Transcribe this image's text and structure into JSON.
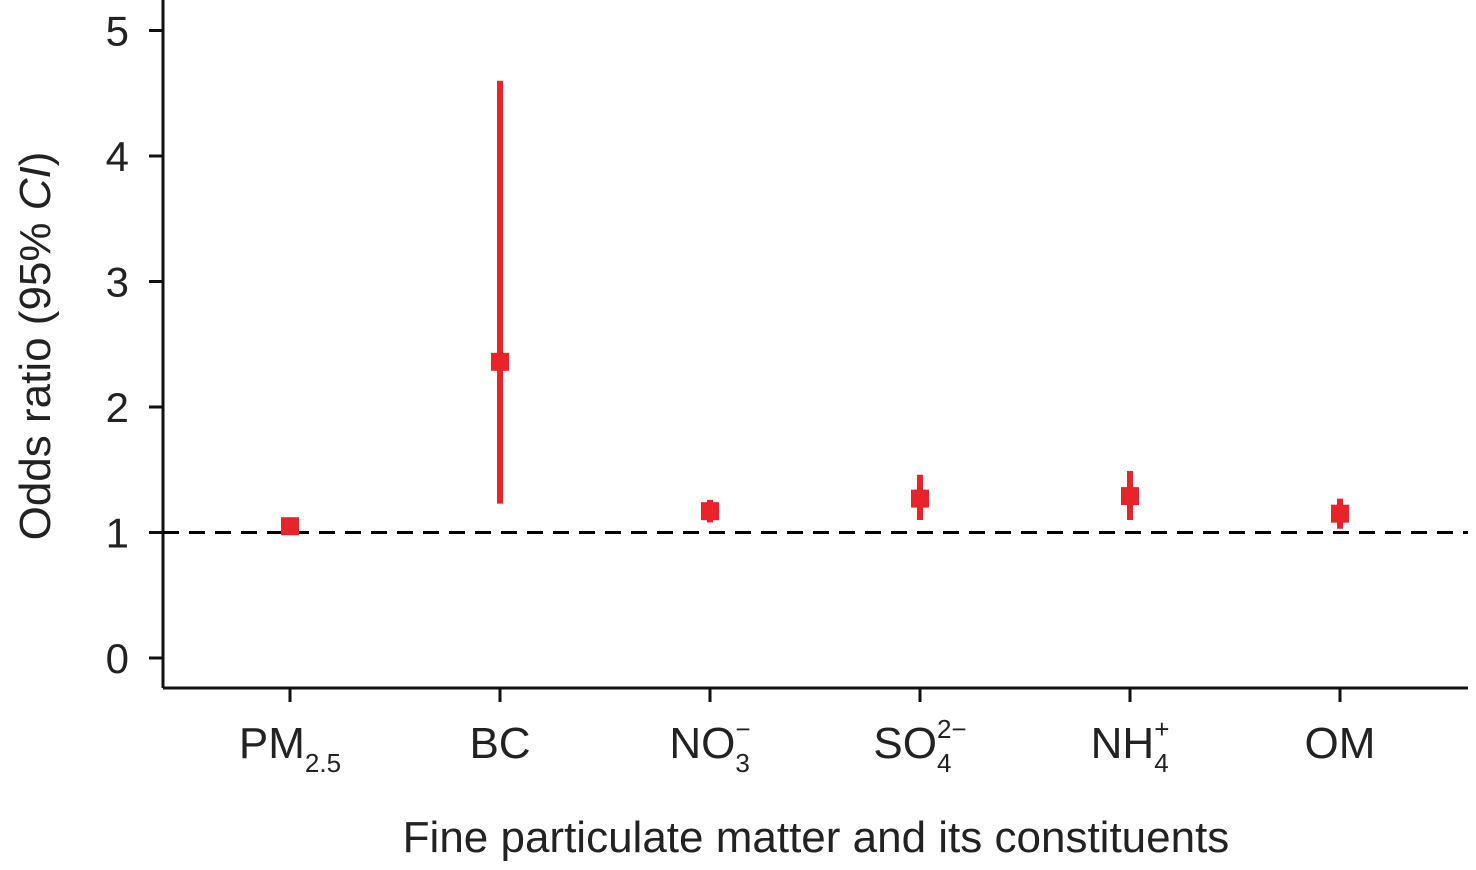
{
  "chart_data": {
    "type": "scatter",
    "subtype": "point-with-confidence-interval",
    "xlabel": "Fine particulate matter and its constituents",
    "ylabel": {
      "prefix": "Odds ratio (95% ",
      "italic": "CI",
      "suffix": ")"
    },
    "ylim": [
      0,
      5.2
    ],
    "yticks": [
      "0",
      "1",
      "2",
      "3",
      "4",
      "5"
    ],
    "reference_line": {
      "y": 1,
      "style": "dashed",
      "color": "#000000"
    },
    "marker_color": "#e8232a",
    "grid": false,
    "categories": [
      {
        "base": "PM",
        "sub": "2.5",
        "sup": "",
        "or": 1.05,
        "lower": 1.03,
        "upper": 1.07
      },
      {
        "base": "BC",
        "sub": "",
        "sup": "",
        "or": 2.36,
        "lower": 1.23,
        "upper": 4.6
      },
      {
        "base": "NO",
        "sub": "3",
        "sup": "−",
        "or": 1.17,
        "lower": 1.08,
        "upper": 1.26
      },
      {
        "base": "SO",
        "sub": "4",
        "sup": "2−",
        "or": 1.27,
        "lower": 1.1,
        "upper": 1.46
      },
      {
        "base": "NH",
        "sub": "4",
        "sup": "+",
        "or": 1.29,
        "lower": 1.1,
        "upper": 1.49
      },
      {
        "base": "OM",
        "sub": "",
        "sup": "",
        "or": 1.15,
        "lower": 1.03,
        "upper": 1.27
      }
    ]
  }
}
